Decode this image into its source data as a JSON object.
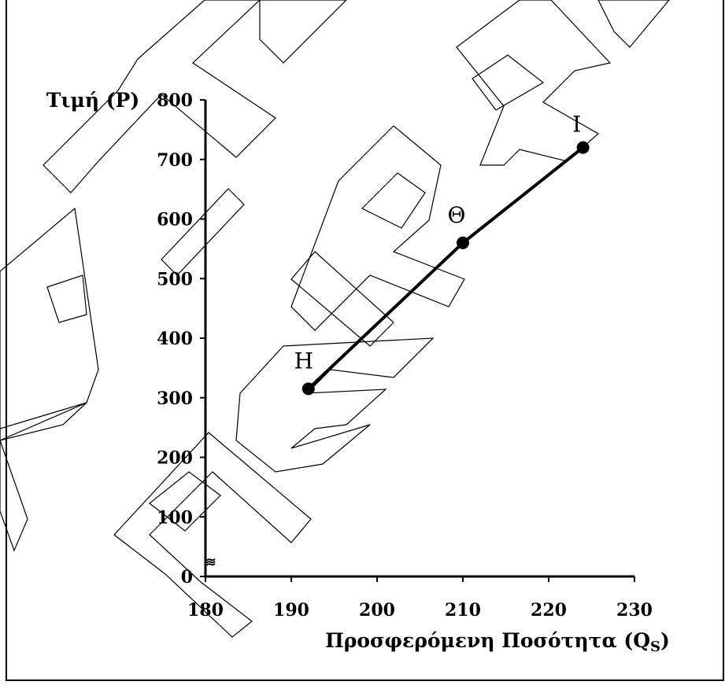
{
  "chart_data": {
    "type": "line",
    "title": "",
    "ylabel": "Τιμή (P)",
    "xlabel_main": "Προσφερόμενη Ποσότητα (Q",
    "xlabel_sub": "S",
    "xlabel_close": ")",
    "xlim": [
      180,
      230
    ],
    "ylim": [
      0,
      800
    ],
    "xticks": [
      180,
      190,
      200,
      210,
      220,
      230
    ],
    "yticks": [
      0,
      100,
      200,
      300,
      400,
      500,
      600,
      700,
      800
    ],
    "points": [
      {
        "label": "Η",
        "x": 192,
        "y": 315
      },
      {
        "label": "Θ",
        "x": 210,
        "y": 560
      },
      {
        "label": "Ι",
        "x": 224,
        "y": 720
      }
    ],
    "axis_break_symbol": "≋",
    "grid": false,
    "legend": "none",
    "colors": {
      "line": "#000000",
      "marker": "#000000",
      "axis": "#000000",
      "watermark": "#000000"
    }
  },
  "watermark": {
    "letters": [
      "Α",
      "Σ",
      "Ι",
      "Α",
      "Π",
      "Ε",
      "Ι",
      "Ρ",
      "Α"
    ]
  }
}
